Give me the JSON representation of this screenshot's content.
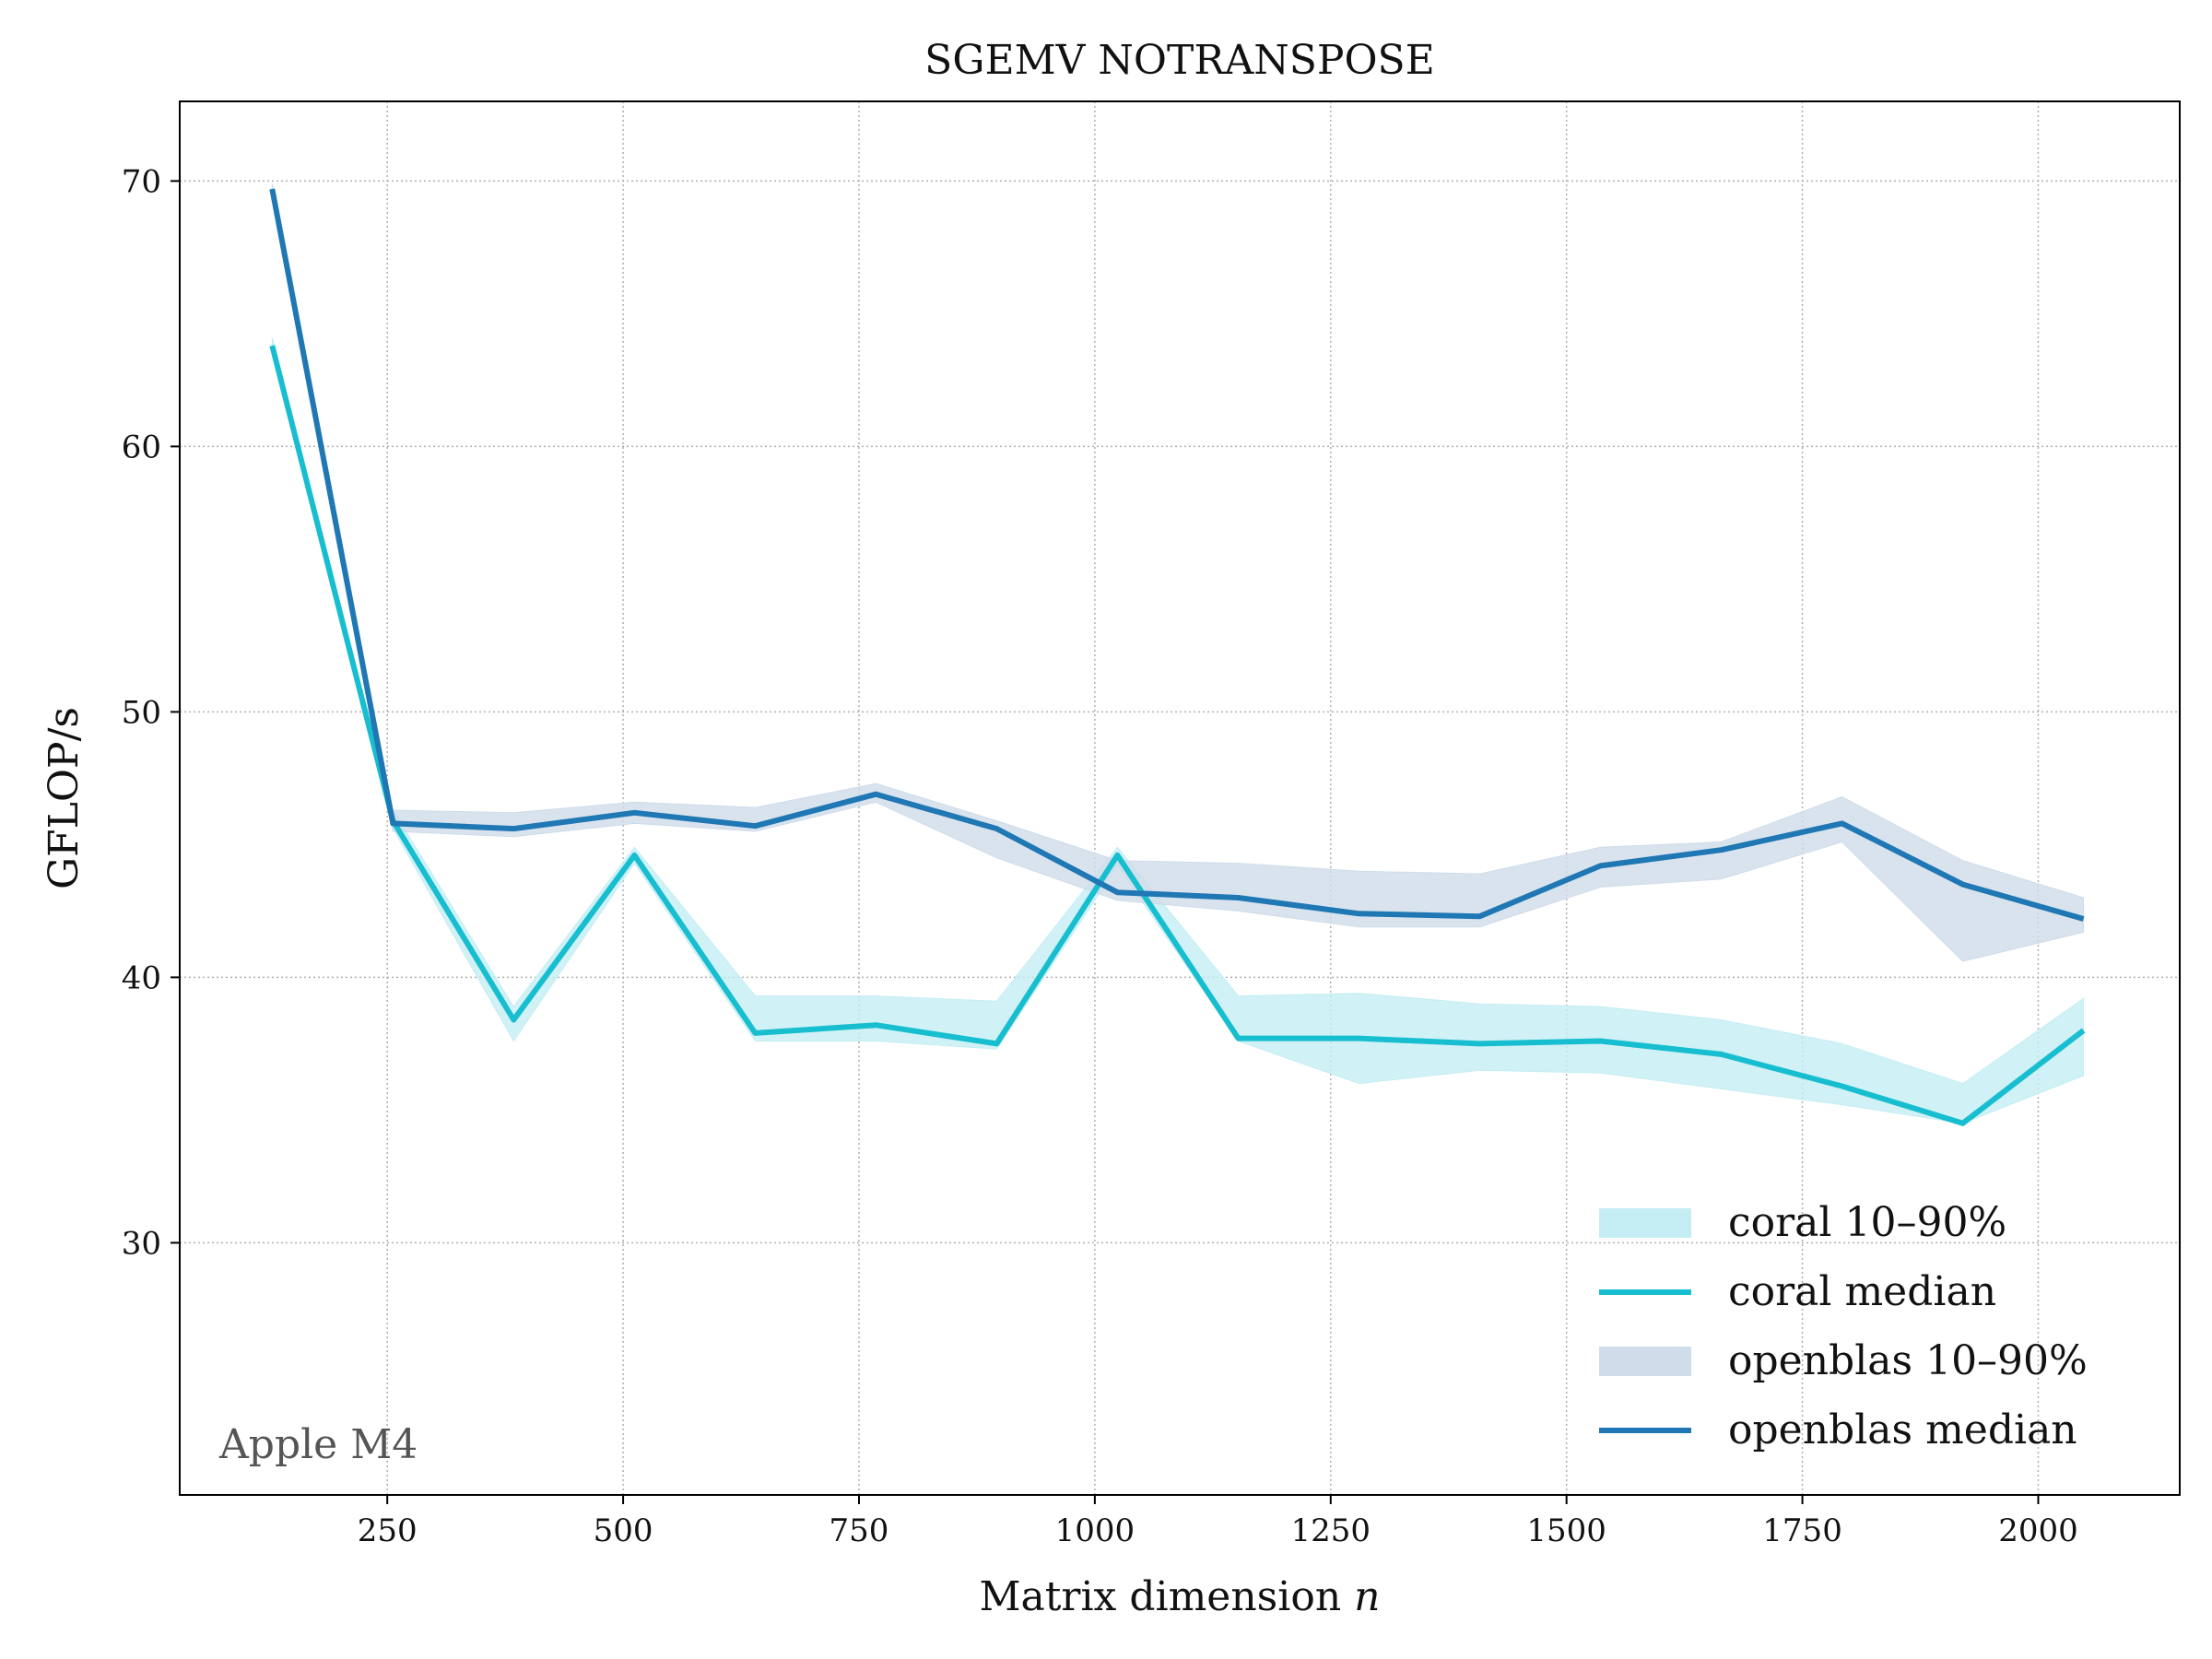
{
  "chart_data": {
    "type": "line",
    "title": "SGEMV NOTRANSPOSE",
    "xlabel": "Matrix dimension",
    "xlabel_var": "n",
    "ylabel": "GFLOP/s",
    "annotation": "Apple M4",
    "xlim": [
      30,
      2150
    ],
    "ylim": [
      20.5,
      73
    ],
    "xticks": [
      250,
      500,
      750,
      1000,
      1250,
      1500,
      1750,
      2000
    ],
    "yticks": [
      30,
      40,
      50,
      60,
      70
    ],
    "grid": true,
    "legend_position": "lower-right",
    "x": [
      128,
      256,
      384,
      512,
      640,
      768,
      896,
      1024,
      1152,
      1280,
      1408,
      1536,
      1664,
      1792,
      1920,
      2048
    ],
    "series": [
      {
        "name": "coral median",
        "band_name": "coral 10–90%",
        "color": "#17becf",
        "band_color": "#c4eef3",
        "median": [
          63.8,
          45.9,
          38.4,
          44.6,
          37.9,
          38.2,
          37.5,
          44.6,
          37.7,
          37.7,
          37.5,
          37.6,
          37.1,
          35.9,
          34.5,
          38.0
        ],
        "p10": [
          63.5,
          45.6,
          37.6,
          44.3,
          37.6,
          37.6,
          37.3,
          44.2,
          37.6,
          36.0,
          36.5,
          36.4,
          35.8,
          35.2,
          34.5,
          36.3
        ],
        "p90": [
          64.1,
          46.3,
          38.9,
          44.9,
          39.3,
          39.3,
          39.1,
          44.9,
          39.3,
          39.4,
          39.0,
          38.9,
          38.4,
          37.5,
          36.0,
          39.2
        ]
      },
      {
        "name": "openblas median",
        "band_name": "openblas 10–90%",
        "color": "#1f77b4",
        "band_color": "#cfdcea",
        "median": [
          69.7,
          45.8,
          45.6,
          46.2,
          45.7,
          46.9,
          45.6,
          43.2,
          43.0,
          42.4,
          42.3,
          44.2,
          44.8,
          45.8,
          43.5,
          42.2
        ],
        "p10": [
          69.5,
          45.5,
          45.3,
          45.8,
          45.5,
          46.6,
          44.5,
          42.9,
          42.5,
          41.9,
          41.9,
          43.4,
          43.7,
          45.1,
          40.6,
          41.7
        ],
        "p90": [
          69.9,
          46.3,
          46.2,
          46.6,
          46.4,
          47.3,
          45.9,
          44.4,
          44.3,
          44.0,
          43.9,
          44.9,
          45.1,
          46.8,
          44.4,
          43.0
        ]
      }
    ]
  }
}
